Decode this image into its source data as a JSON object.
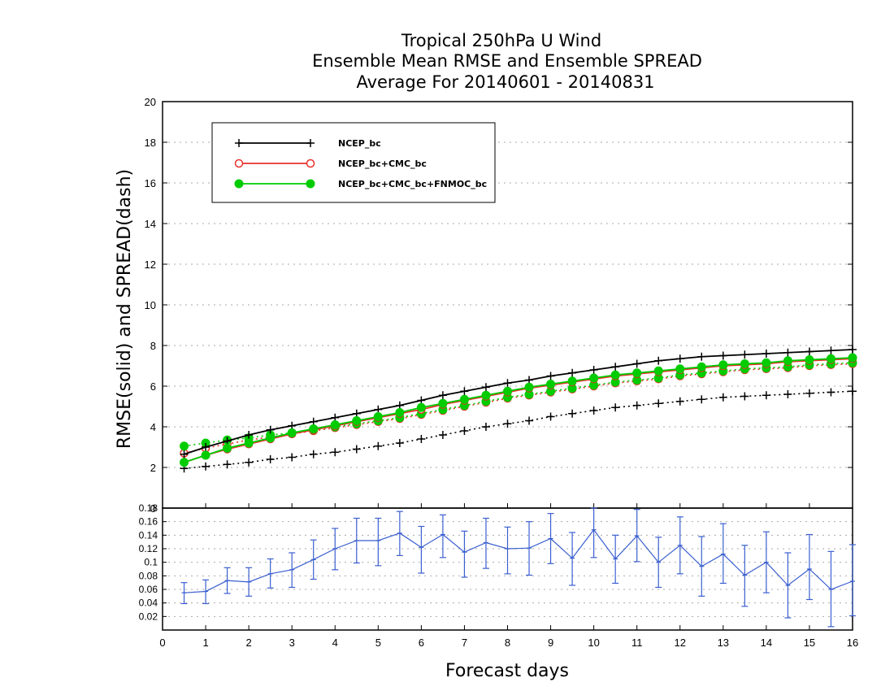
{
  "title_lines": [
    "Tropical 250hPa U Wind",
    "Ensemble Mean RMSE and Ensemble SPREAD",
    "Average For 20140601 - 20140831"
  ],
  "colors": {
    "ncep": "#000000",
    "ncep_cmc": "#e8312b",
    "ncep_cmc_fnmoc": "#00cc00",
    "difference": "#3a5fd0",
    "grid": "#aaaaaa"
  },
  "chart_data": [
    {
      "type": "line",
      "xlabel": "Forecast days",
      "ylabel": "RMSE(solid)  and  SPREAD(dash)",
      "xlim": [
        0,
        16
      ],
      "ylim": [
        0,
        20
      ],
      "y_ticks": [
        0,
        2,
        4,
        6,
        8,
        10,
        12,
        14,
        16,
        18,
        20
      ],
      "grid": "horizontal dotted",
      "legend_position": "top-left",
      "x": [
        0.5,
        1,
        1.5,
        2,
        2.5,
        3,
        3.5,
        4,
        4.5,
        5,
        5.5,
        6,
        6.5,
        7,
        7.5,
        8,
        8.5,
        9,
        9.5,
        10,
        10.5,
        11,
        11.5,
        12,
        12.5,
        13,
        13.5,
        14,
        14.5,
        15,
        15.5,
        16
      ],
      "series": [
        {
          "name": "NCEP_bc",
          "style": "solid",
          "marker": "plus",
          "color": "#000000",
          "values": [
            2.65,
            3.0,
            3.3,
            3.6,
            3.85,
            4.05,
            4.25,
            4.45,
            4.65,
            4.85,
            5.05,
            5.3,
            5.55,
            5.75,
            5.95,
            6.15,
            6.3,
            6.5,
            6.65,
            6.8,
            6.95,
            7.1,
            7.25,
            7.35,
            7.45,
            7.5,
            7.55,
            7.6,
            7.65,
            7.7,
            7.75,
            7.8
          ]
        },
        {
          "name": "NCEP_bc spread",
          "style": "dotted",
          "marker": "plus",
          "color": "#000000",
          "values": [
            1.95,
            2.05,
            2.15,
            2.25,
            2.4,
            2.5,
            2.65,
            2.75,
            2.9,
            3.05,
            3.2,
            3.4,
            3.6,
            3.8,
            4.0,
            4.15,
            4.3,
            4.5,
            4.65,
            4.8,
            4.95,
            5.05,
            5.15,
            5.25,
            5.35,
            5.45,
            5.5,
            5.55,
            5.6,
            5.65,
            5.7,
            5.75
          ]
        },
        {
          "name": "NCEP_bc+CMC_bc",
          "style": "solid",
          "marker": "open-circle",
          "color": "#e8312b",
          "values": [
            2.25,
            2.6,
            2.9,
            3.15,
            3.4,
            3.65,
            3.85,
            4.05,
            4.25,
            4.45,
            4.65,
            4.85,
            5.1,
            5.3,
            5.5,
            5.7,
            5.9,
            6.05,
            6.2,
            6.35,
            6.5,
            6.6,
            6.7,
            6.8,
            6.9,
            7.0,
            7.05,
            7.1,
            7.2,
            7.25,
            7.3,
            7.35
          ]
        },
        {
          "name": "NCEP_bc+CMC_bc spread",
          "style": "dotted",
          "marker": "open-circle",
          "color": "#e8312b",
          "values": [
            2.7,
            2.95,
            3.15,
            3.35,
            3.5,
            3.65,
            3.8,
            3.95,
            4.1,
            4.25,
            4.4,
            4.6,
            4.8,
            5.0,
            5.2,
            5.4,
            5.55,
            5.7,
            5.85,
            6.0,
            6.15,
            6.25,
            6.35,
            6.5,
            6.6,
            6.7,
            6.8,
            6.85,
            6.9,
            7.0,
            7.05,
            7.1
          ]
        },
        {
          "name": "NCEP_bc+CMC_bc+FNMOC_bc",
          "style": "solid",
          "marker": "filled-circle",
          "color": "#00cc00",
          "values": [
            2.25,
            2.6,
            2.95,
            3.2,
            3.45,
            3.7,
            3.9,
            4.1,
            4.3,
            4.5,
            4.7,
            4.95,
            5.15,
            5.35,
            5.55,
            5.75,
            5.95,
            6.1,
            6.25,
            6.4,
            6.55,
            6.65,
            6.75,
            6.85,
            6.95,
            7.05,
            7.1,
            7.15,
            7.25,
            7.3,
            7.35,
            7.4
          ]
        },
        {
          "name": "NCEP_bc+CMC_bc+FNMOC_bc spread",
          "style": "dotted",
          "marker": "filled-circle",
          "color": "#00cc00",
          "values": [
            3.05,
            3.2,
            3.35,
            3.45,
            3.6,
            3.7,
            3.85,
            4.0,
            4.15,
            4.3,
            4.45,
            4.65,
            4.85,
            5.05,
            5.25,
            5.45,
            5.6,
            5.75,
            5.9,
            6.05,
            6.2,
            6.3,
            6.4,
            6.55,
            6.65,
            6.75,
            6.85,
            6.9,
            6.95,
            7.05,
            7.1,
            7.15
          ]
        }
      ]
    },
    {
      "type": "line",
      "xlabel": "Forecast days",
      "xlim": [
        0,
        16
      ],
      "x_ticks": [
        0,
        1,
        2,
        3,
        4,
        5,
        6,
        7,
        8,
        9,
        10,
        11,
        12,
        13,
        14,
        15,
        16
      ],
      "ylim": [
        0,
        0.18
      ],
      "y_tick_labels": [
        "0.02",
        "0.04",
        "0.06",
        "0.08",
        "0.1",
        "0.12",
        "0.14",
        "0.16",
        "0.18"
      ],
      "y_ticks": [
        0.02,
        0.04,
        0.06,
        0.08,
        0.1,
        0.12,
        0.14,
        0.16,
        0.18
      ],
      "x": [
        0.5,
        1,
        1.5,
        2,
        2.5,
        3,
        3.5,
        4,
        4.5,
        5,
        5.5,
        6,
        6.5,
        7,
        7.5,
        8,
        8.5,
        9,
        9.5,
        10,
        10.5,
        11,
        11.5,
        12,
        12.5,
        13,
        13.5,
        14,
        14.5,
        15,
        15.5,
        16
      ],
      "series": [
        {
          "marker": "error-bar",
          "color": "#3a5fd0",
          "values": [
            0.055,
            0.057,
            0.073,
            0.071,
            0.083,
            0.089,
            0.104,
            0.12,
            0.132,
            0.132,
            0.143,
            0.122,
            0.141,
            0.115,
            0.129,
            0.12,
            0.121,
            0.135,
            0.106,
            0.148,
            0.105,
            0.139,
            0.1,
            0.125,
            0.094,
            0.112,
            0.081,
            0.1,
            0.066,
            0.09,
            0.06,
            0.072
          ],
          "error_low": [
            0.039,
            0.039,
            0.054,
            0.05,
            0.062,
            0.063,
            0.075,
            0.089,
            0.099,
            0.095,
            0.11,
            0.084,
            0.107,
            0.078,
            0.091,
            0.083,
            0.081,
            0.098,
            0.066,
            0.107,
            0.069,
            0.101,
            0.063,
            0.083,
            0.05,
            0.069,
            0.035,
            0.055,
            0.018,
            0.045,
            0.005,
            0.021
          ],
          "error_high": [
            0.07,
            0.074,
            0.092,
            0.092,
            0.105,
            0.114,
            0.133,
            0.15,
            0.165,
            0.165,
            0.175,
            0.153,
            0.17,
            0.146,
            0.165,
            0.152,
            0.16,
            0.172,
            0.144,
            0.19,
            0.14,
            0.178,
            0.137,
            0.167,
            0.138,
            0.157,
            0.125,
            0.145,
            0.114,
            0.141,
            0.116,
            0.126
          ]
        }
      ]
    }
  ]
}
